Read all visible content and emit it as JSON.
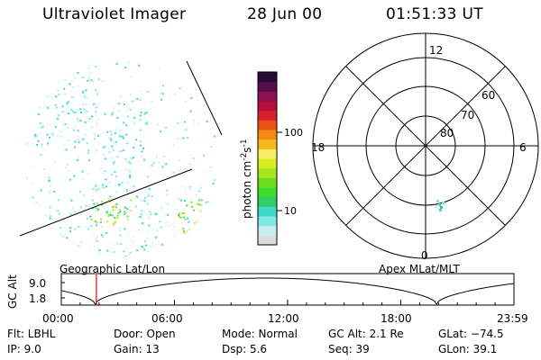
{
  "header": {
    "instrument": "Ultraviolet Imager",
    "date": "28 Jun 00",
    "time": "01:51:33 UT"
  },
  "left_panel": {
    "caption": "Geographic Lat/Lon"
  },
  "right_panel": {
    "caption": "Apex MLat/MLT",
    "lat_labels": [
      "60",
      "70",
      "80"
    ],
    "mlt_labels": {
      "top": "12",
      "bottom": "0",
      "left": "18",
      "right": "6"
    }
  },
  "colorbar": {
    "label": "photon cm",
    "label_sup1": "-2",
    "label_mid": "s",
    "label_sup2": "-1",
    "ticks": [
      "100",
      "10"
    ],
    "colors": [
      "#dcdcdc",
      "#c6f0f0",
      "#7fe8e0",
      "#3ed9c8",
      "#2ecf6a",
      "#3fdc2a",
      "#6be021",
      "#a8e61d",
      "#d8ec24",
      "#f4ef66",
      "#f7b81d",
      "#f28a12",
      "#e85410",
      "#d6202a",
      "#b0103a",
      "#8a1050",
      "#55104a",
      "#2a0a30"
    ]
  },
  "timeline": {
    "ylabel": "GC Alt",
    "yticks": [
      "9.0",
      "1.8"
    ],
    "xticks": [
      "00:00",
      "06:00",
      "12:00",
      "18:00",
      "23:59"
    ],
    "current_time_hours": 1.86
  },
  "info": {
    "flt": "Flt: LBHL",
    "ip": "IP:  9.0",
    "door": "Door: Open",
    "gain": "Gain: 13",
    "mode": "Mode: Normal",
    "dsp": "Dsp:    5.6",
    "gc_alt": "GC Alt: 2.1 Re",
    "seq": "Seq: 39",
    "glat": "GLat: −74.5",
    "glon": "GLon:  39.1"
  }
}
